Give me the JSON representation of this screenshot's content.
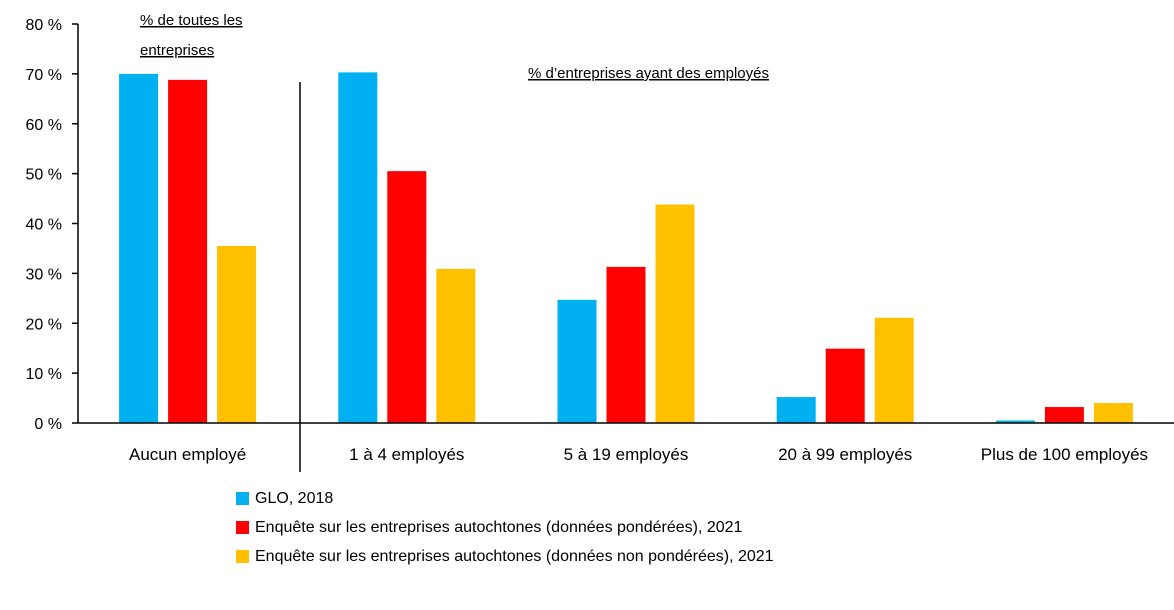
{
  "chart_data": {
    "type": "bar",
    "categories": [
      "Aucun employé",
      "1 à 4 employés",
      "5 à 19 employés",
      "20 à 99 employés",
      "Plus de 100 employés"
    ],
    "series": [
      {
        "name": "GLO, 2018",
        "color": "#00B0F0",
        "values": [
          70.0,
          70.3,
          24.7,
          5.2,
          0.5
        ]
      },
      {
        "name": "Enquête sur les entreprises autochtones (données pondérées), 2021",
        "color": "#FF0000",
        "values": [
          68.8,
          50.5,
          31.3,
          14.9,
          3.2
        ]
      },
      {
        "name": "Enquête sur les entreprises autochtones (données non pondérées), 2021",
        "color": "#FFC000",
        "values": [
          35.5,
          30.9,
          43.8,
          21.1,
          4.0
        ]
      }
    ],
    "yticks": [
      "0 %",
      "10 %",
      "20 %",
      "30 %",
      "40 %",
      "50 %",
      "60 %",
      "70 %",
      "80 %"
    ],
    "ylim": [
      0,
      80
    ],
    "grid": false,
    "legend_position": "bottom",
    "annotations": [
      "% de toutes les",
      "entreprises",
      "% d’entreprises ayant des employés"
    ]
  }
}
